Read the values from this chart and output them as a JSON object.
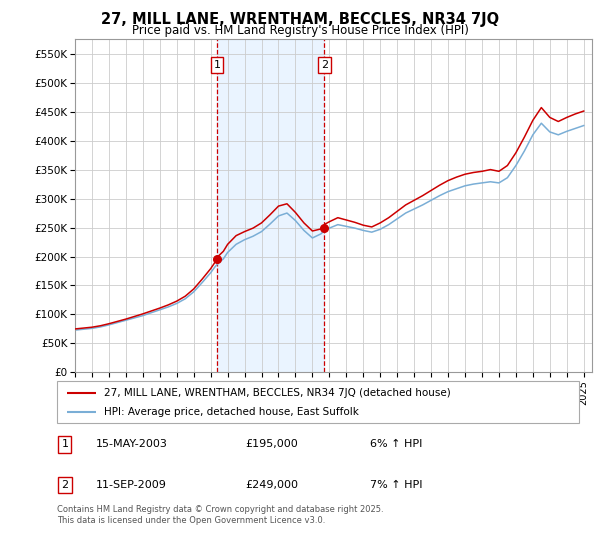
{
  "title": "27, MILL LANE, WRENTHAM, BECCLES, NR34 7JQ",
  "subtitle": "Price paid vs. HM Land Registry's House Price Index (HPI)",
  "ylabel_ticks": [
    "£0",
    "£50K",
    "£100K",
    "£150K",
    "£200K",
    "£250K",
    "£300K",
    "£350K",
    "£400K",
    "£450K",
    "£500K",
    "£550K"
  ],
  "ytick_values": [
    0,
    50000,
    100000,
    150000,
    200000,
    250000,
    300000,
    350000,
    400000,
    450000,
    500000,
    550000
  ],
  "ylim": [
    0,
    575000
  ],
  "legend_line1": "27, MILL LANE, WRENTHAM, BECCLES, NR34 7JQ (detached house)",
  "legend_line2": "HPI: Average price, detached house, East Suffolk",
  "sale1_label": "1",
  "sale1_date": "15-MAY-2003",
  "sale1_price": "£195,000",
  "sale1_hpi": "6% ↑ HPI",
  "sale1_x": 2003.37,
  "sale1_y": 195000,
  "sale2_label": "2",
  "sale2_date": "11-SEP-2009",
  "sale2_price": "£249,000",
  "sale2_hpi": "7% ↑ HPI",
  "sale2_x": 2009.7,
  "sale2_y": 249000,
  "footer": "Contains HM Land Registry data © Crown copyright and database right 2025.\nThis data is licensed under the Open Government Licence v3.0.",
  "line_color_red": "#cc0000",
  "line_color_blue": "#7aaed6",
  "background_color": "#ffffff",
  "plot_bg_color": "#ffffff",
  "grid_color": "#cccccc",
  "shade_color": "#ddeeff",
  "vline_color": "#cc0000",
  "xlim_left": 1995.0,
  "xlim_right": 2025.5,
  "xtick_start": 1995,
  "xtick_end": 2025
}
